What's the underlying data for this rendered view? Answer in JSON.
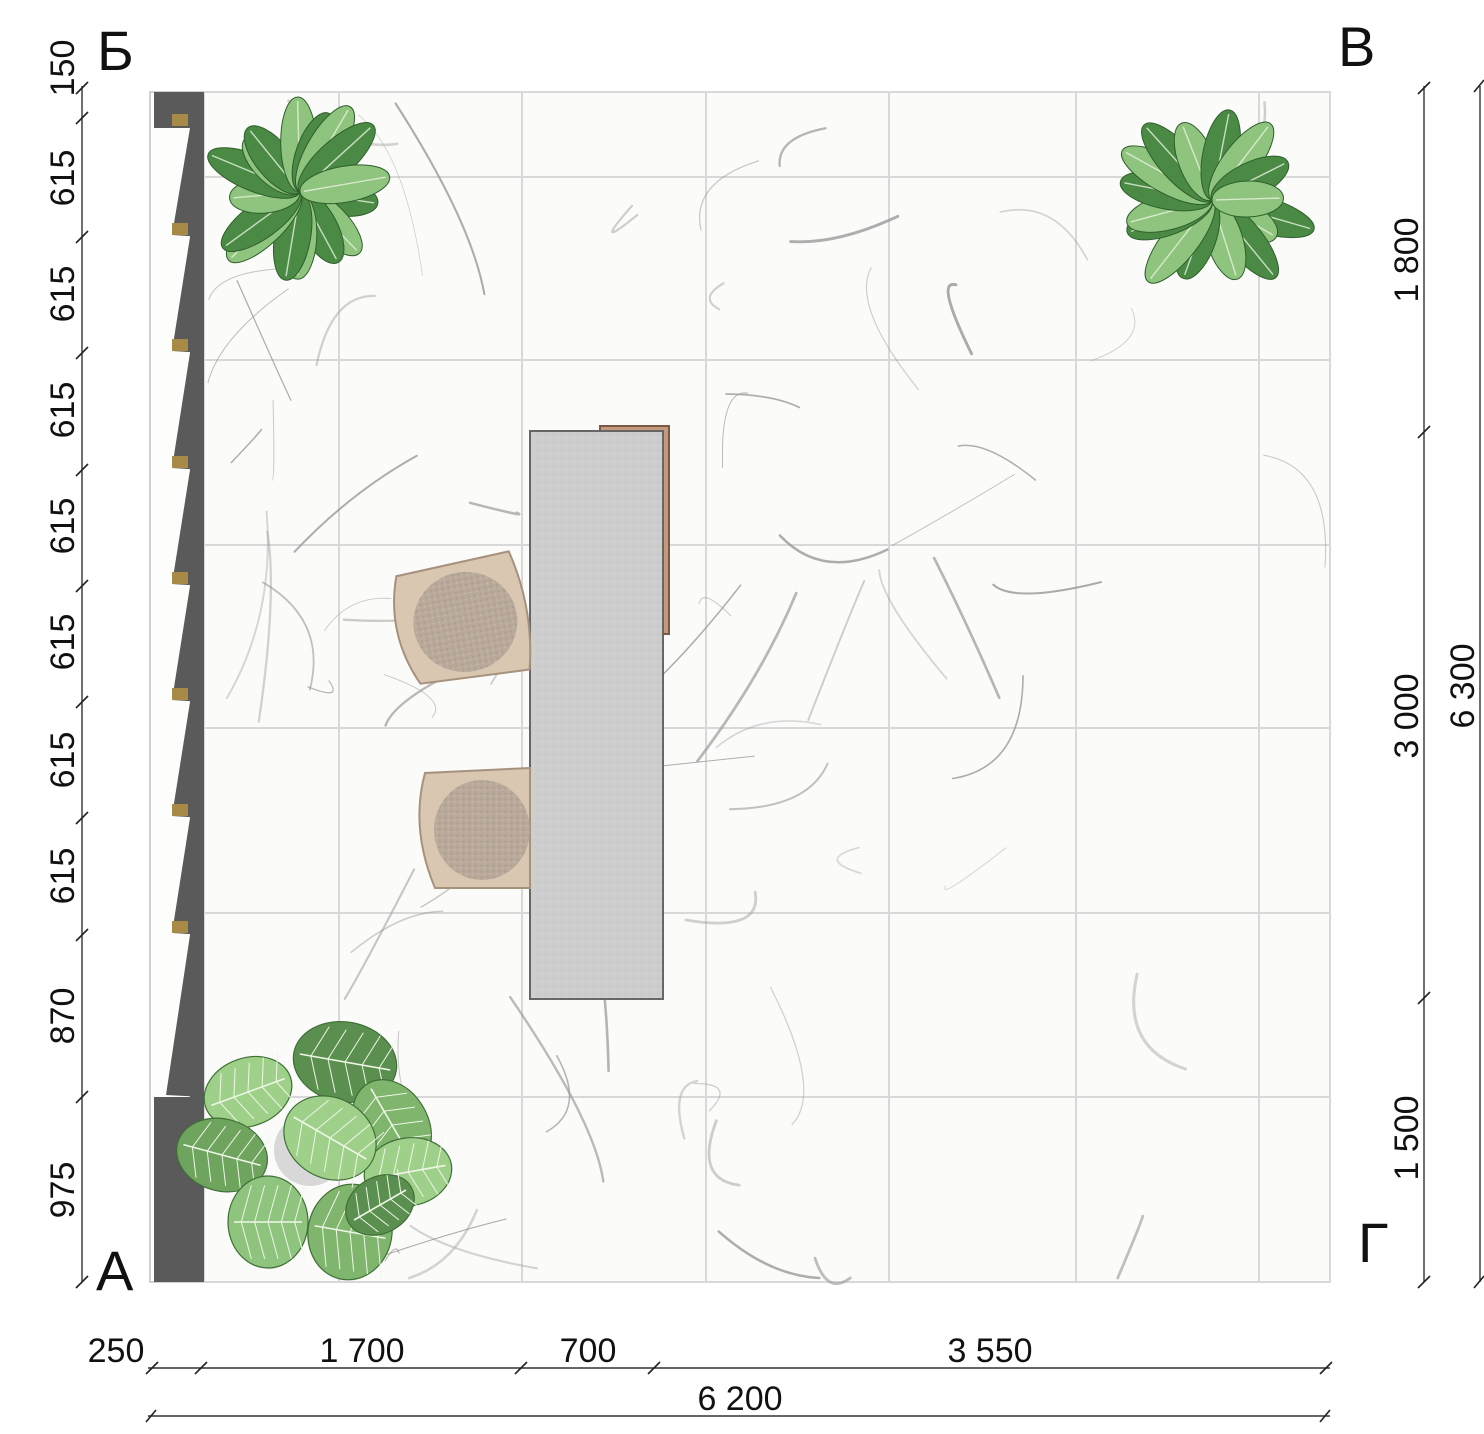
{
  "corners": {
    "top_left": "Б",
    "top_right": "В",
    "bottom_left": "А",
    "bottom_right": "Г"
  },
  "dimensions": {
    "left": [
      "150",
      "615",
      "615",
      "615",
      "615",
      "615",
      "615",
      "615",
      "870",
      "975"
    ],
    "right_inner": [
      "1 800",
      "3 000",
      "1 500"
    ],
    "right_outer": "6 300",
    "bottom_segments": [
      "250",
      "1 700",
      "700",
      "3 550"
    ],
    "bottom_total": "6 200"
  },
  "colors": {
    "wall": "#5a5a5a",
    "wall_accent": "#a68a45",
    "table_top": "#cbcbcb",
    "table_edge": "#c49a7c",
    "chair": "#c9b8a6",
    "plant_light": "#8ec47d",
    "plant_dark": "#3f7a3a"
  }
}
